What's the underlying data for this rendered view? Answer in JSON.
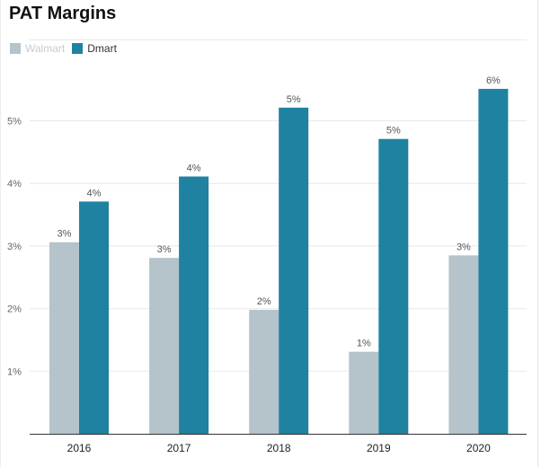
{
  "chart_data": {
    "type": "bar",
    "title": "PAT Margins",
    "categories": [
      "2016",
      "2017",
      "2018",
      "2019",
      "2020"
    ],
    "series": [
      {
        "name": "Walmart",
        "color": "#b5c3ca",
        "values": [
          3.06,
          2.81,
          1.98,
          1.31,
          2.85
        ],
        "labels": [
          "3%",
          "3%",
          "2%",
          "1%",
          "3%"
        ]
      },
      {
        "name": "Dmart",
        "color": "#1f82a1",
        "values": [
          3.71,
          4.11,
          5.21,
          4.71,
          5.51
        ],
        "labels": [
          "4%",
          "4%",
          "5%",
          "5%",
          "6%"
        ]
      }
    ],
    "yticks": [
      1,
      2,
      3,
      4,
      5
    ],
    "ytick_labels": [
      "1%",
      "2%",
      "3%",
      "4%",
      "5%"
    ],
    "ylim": [
      0,
      6.3
    ],
    "grid": true,
    "legend_position": "top-left",
    "xlabel": "",
    "ylabel": ""
  }
}
